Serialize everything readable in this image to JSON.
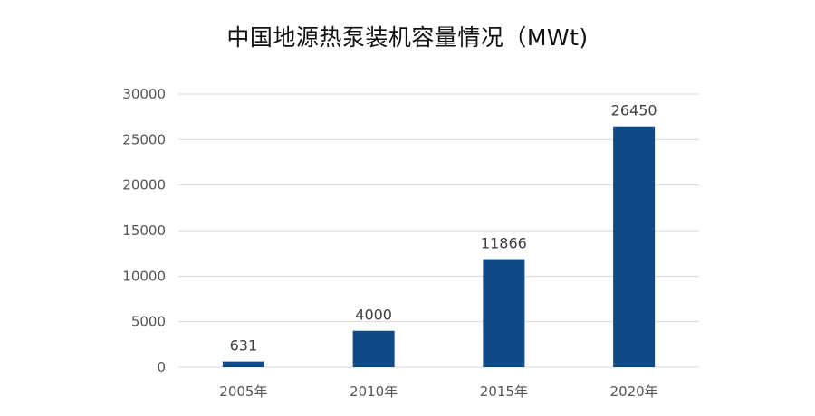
{
  "chart_data": {
    "type": "bar",
    "title": "中国地源热泵装机容量情况（MWt)",
    "categories": [
      "2005年",
      "2010年",
      "2015年",
      "2020年"
    ],
    "values": [
      631,
      4000,
      11866,
      26450
    ],
    "data_labels": [
      "631",
      "4000",
      "11866",
      "26450"
    ],
    "ylim": [
      0,
      30000
    ],
    "yticks": [
      0,
      5000,
      10000,
      15000,
      20000,
      25000,
      30000
    ],
    "ytick_labels": [
      "0",
      "5000",
      "10000",
      "15000",
      "20000",
      "25000",
      "30000"
    ],
    "xlabel": "",
    "ylabel": "",
    "grid": true,
    "legend": "none",
    "bar_color": "#0f4a86"
  }
}
